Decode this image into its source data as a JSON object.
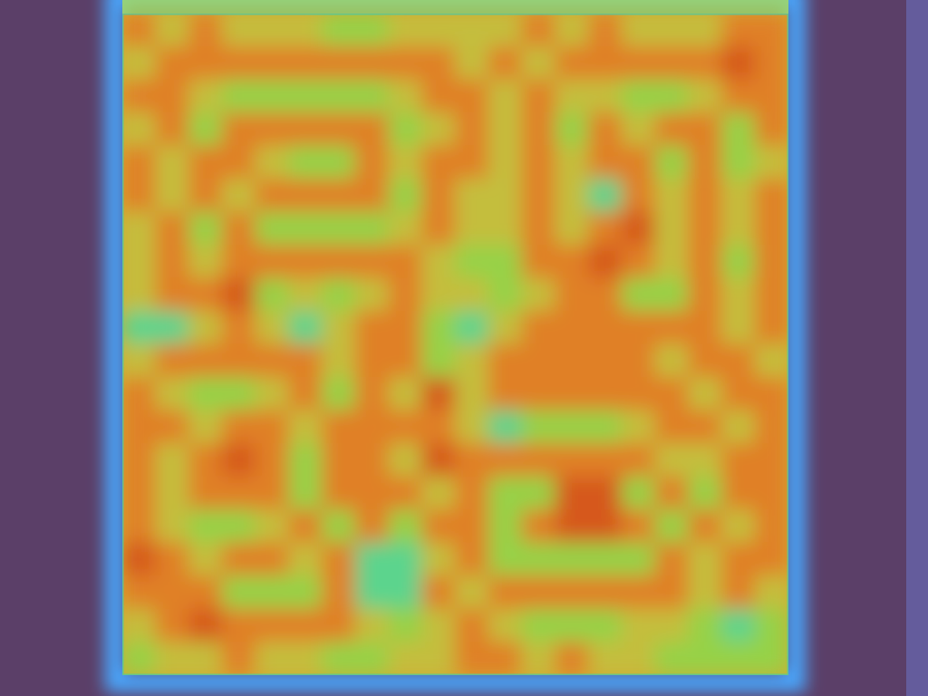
{
  "chart_data": {
    "type": "heatmap",
    "zlim": [
      0,
      1
    ],
    "tick_labels": false,
    "cells": [
      [
        0.78,
        0.66,
        0.78,
        0.66,
        0.66,
        0.66,
        0.58,
        0.58,
        0.66,
        0.66,
        0.66,
        0.66,
        0.78,
        0.66,
        0.78,
        0.66,
        0.66,
        0.66,
        0.78,
        0.78
      ],
      [
        0.66,
        0.78,
        0.78,
        0.78,
        0.78,
        0.78,
        0.78,
        0.78,
        0.78,
        0.78,
        0.66,
        0.78,
        0.66,
        0.78,
        0.78,
        0.78,
        0.78,
        0.78,
        0.84,
        0.78
      ],
      [
        0.78,
        0.78,
        0.66,
        0.58,
        0.58,
        0.58,
        0.58,
        0.58,
        0.66,
        0.78,
        0.78,
        0.66,
        0.78,
        0.66,
        0.66,
        0.58,
        0.58,
        0.66,
        0.78,
        0.78
      ],
      [
        0.66,
        0.78,
        0.58,
        0.78,
        0.78,
        0.78,
        0.78,
        0.78,
        0.58,
        0.66,
        0.78,
        0.66,
        0.78,
        0.58,
        0.78,
        0.66,
        0.78,
        0.78,
        0.58,
        0.78
      ],
      [
        0.78,
        0.66,
        0.78,
        0.78,
        0.66,
        0.58,
        0.58,
        0.78,
        0.66,
        0.78,
        0.78,
        0.66,
        0.78,
        0.66,
        0.78,
        0.78,
        0.58,
        0.78,
        0.58,
        0.66
      ],
      [
        0.78,
        0.66,
        0.78,
        0.66,
        0.78,
        0.78,
        0.78,
        0.78,
        0.58,
        0.78,
        0.66,
        0.66,
        0.78,
        0.66,
        0.45,
        0.78,
        0.66,
        0.78,
        0.66,
        0.78
      ],
      [
        0.66,
        0.78,
        0.58,
        0.78,
        0.58,
        0.58,
        0.58,
        0.58,
        0.66,
        0.78,
        0.66,
        0.66,
        0.78,
        0.66,
        0.78,
        0.84,
        0.66,
        0.78,
        0.66,
        0.78
      ],
      [
        0.66,
        0.78,
        0.66,
        0.78,
        0.78,
        0.78,
        0.78,
        0.78,
        0.78,
        0.66,
        0.58,
        0.58,
        0.78,
        0.78,
        0.84,
        0.78,
        0.66,
        0.78,
        0.58,
        0.78
      ],
      [
        0.66,
        0.78,
        0.78,
        0.84,
        0.58,
        0.66,
        0.58,
        0.66,
        0.78,
        0.66,
        0.66,
        0.58,
        0.66,
        0.78,
        0.78,
        0.58,
        0.58,
        0.78,
        0.66,
        0.78
      ],
      [
        0.45,
        0.45,
        0.66,
        0.78,
        0.66,
        0.45,
        0.66,
        0.78,
        0.78,
        0.58,
        0.45,
        0.66,
        0.78,
        0.78,
        0.78,
        0.78,
        0.78,
        0.78,
        0.66,
        0.78
      ],
      [
        0.66,
        0.78,
        0.78,
        0.78,
        0.78,
        0.78,
        0.66,
        0.78,
        0.78,
        0.58,
        0.66,
        0.78,
        0.78,
        0.78,
        0.78,
        0.78,
        0.66,
        0.78,
        0.78,
        0.66
      ],
      [
        0.78,
        0.66,
        0.58,
        0.58,
        0.66,
        0.78,
        0.58,
        0.78,
        0.66,
        0.84,
        0.66,
        0.78,
        0.78,
        0.78,
        0.78,
        0.78,
        0.78,
        0.66,
        0.78,
        0.78
      ],
      [
        0.78,
        0.78,
        0.66,
        0.78,
        0.78,
        0.66,
        0.78,
        0.78,
        0.78,
        0.78,
        0.66,
        0.45,
        0.58,
        0.58,
        0.58,
        0.66,
        0.78,
        0.78,
        0.66,
        0.78
      ],
      [
        0.78,
        0.66,
        0.78,
        0.84,
        0.78,
        0.58,
        0.78,
        0.78,
        0.66,
        0.84,
        0.78,
        0.78,
        0.78,
        0.78,
        0.78,
        0.78,
        0.66,
        0.66,
        0.78,
        0.78
      ],
      [
        0.78,
        0.66,
        0.78,
        0.78,
        0.78,
        0.58,
        0.78,
        0.78,
        0.78,
        0.66,
        0.78,
        0.58,
        0.58,
        0.84,
        0.84,
        0.58,
        0.78,
        0.58,
        0.78,
        0.78
      ],
      [
        0.78,
        0.66,
        0.58,
        0.58,
        0.66,
        0.78,
        0.58,
        0.78,
        0.58,
        0.78,
        0.78,
        0.58,
        0.78,
        0.84,
        0.84,
        0.78,
        0.58,
        0.78,
        0.66,
        0.78
      ],
      [
        0.84,
        0.78,
        0.66,
        0.78,
        0.78,
        0.66,
        0.78,
        0.45,
        0.45,
        0.66,
        0.78,
        0.58,
        0.58,
        0.58,
        0.58,
        0.58,
        0.78,
        0.66,
        0.78,
        0.78
      ],
      [
        0.78,
        0.78,
        0.78,
        0.58,
        0.58,
        0.58,
        0.78,
        0.45,
        0.45,
        0.78,
        0.66,
        0.78,
        0.78,
        0.78,
        0.78,
        0.78,
        0.78,
        0.66,
        0.78,
        0.66
      ],
      [
        0.66,
        0.78,
        0.84,
        0.78,
        0.78,
        0.78,
        0.78,
        0.66,
        0.58,
        0.66,
        0.78,
        0.66,
        0.58,
        0.58,
        0.58,
        0.66,
        0.66,
        0.58,
        0.45,
        0.58
      ],
      [
        0.58,
        0.66,
        0.66,
        0.78,
        0.66,
        0.66,
        0.58,
        0.58,
        0.66,
        0.66,
        0.78,
        0.78,
        0.66,
        0.78,
        0.66,
        0.66,
        0.58,
        0.58,
        0.58,
        0.58
      ]
    ]
  }
}
